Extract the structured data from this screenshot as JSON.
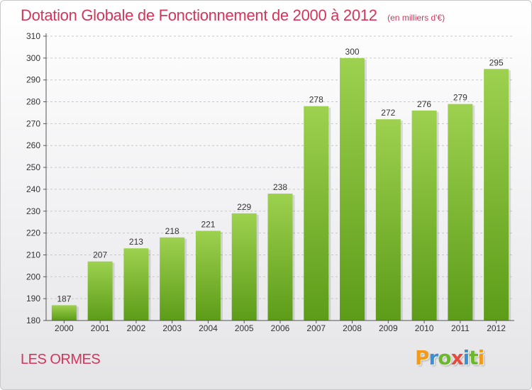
{
  "header": {
    "title": "Dotation Globale de Fonctionnement de 2000 à 2012",
    "unit_note": "(en milliers d'€)"
  },
  "footer": {
    "location": "LES ORMES",
    "brand": "Proxiti",
    "brand_letters": [
      {
        "char": "P",
        "color": "#f39a1a"
      },
      {
        "char": "r",
        "color": "#3b8fd6"
      },
      {
        "char": "o",
        "color": "#6cb82c"
      },
      {
        "char": "x",
        "color": "#e84a3c"
      },
      {
        "char": "i",
        "color": "#3b8fd6"
      },
      {
        "char": "t",
        "color": "#6cb82c"
      },
      {
        "char": "i",
        "color": "#f39a1a"
      }
    ]
  },
  "colors": {
    "accent": "#d4355a",
    "bar_top": "#9dd14f",
    "bar_bottom": "#5c9c18",
    "axis": "#555555",
    "grid": "#c8c8c8"
  },
  "chart_data": {
    "type": "bar",
    "categories": [
      "2000",
      "2001",
      "2002",
      "2003",
      "2004",
      "2005",
      "2006",
      "2007",
      "2008",
      "2009",
      "2010",
      "2011",
      "2012"
    ],
    "values": [
      187,
      207,
      213,
      218,
      221,
      229,
      238,
      278,
      300,
      272,
      276,
      279,
      295
    ],
    "ylim": [
      180,
      310
    ],
    "yticks": [
      180,
      190,
      200,
      210,
      220,
      230,
      240,
      250,
      260,
      270,
      280,
      290,
      300,
      310
    ],
    "grid": "horizontal dashed",
    "data_labels": true
  }
}
